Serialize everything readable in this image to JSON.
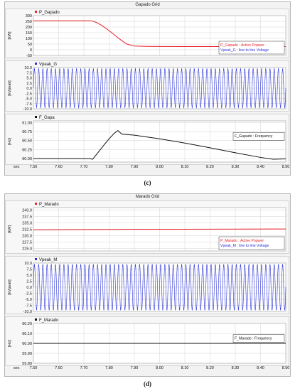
{
  "colors": {
    "power": "#e8202a",
    "voltage": "#2a33d8",
    "frequency": "#111111",
    "panel_bg": "#ffffff",
    "grid": "#c8c8c8"
  },
  "figures": [
    {
      "title": "Gapado Grid",
      "caption": "(c)",
      "x_axis_label": "sec",
      "x_ticks": [
        "7.50",
        "7.60",
        "7.70",
        "7.80",
        "7.90",
        "8.00",
        "8.10",
        "8.20",
        "8.30",
        "8.40",
        "8.50"
      ],
      "panels": [
        {
          "legend": "P_Gapado",
          "unit": "[kW]",
          "y_ticks": [
            "300",
            "250",
            "200",
            "150",
            "100",
            "50",
            "0",
            "-50"
          ],
          "series_color": "power",
          "annotation": [
            {
              "text": "P_Gapado : Active Popwer",
              "color": "power"
            },
            {
              "text": "Vpeak_G : line to line Voltage",
              "color": "voltage"
            }
          ]
        },
        {
          "legend": "Vpeak_G",
          "unit": "[kVpeak]",
          "y_ticks": [
            "10.0",
            "7.5",
            "5.0",
            "2.5",
            "0.0",
            "-2.5",
            "-5.0",
            "-7.5",
            "-10.0"
          ],
          "series_color": "voltage",
          "annotation": []
        },
        {
          "legend": "F_Gapa",
          "unit": "[Hz]",
          "y_ticks": [
            "61.00",
            "60.75",
            "60.50",
            "60.25",
            "60.00"
          ],
          "series_color": "frequency",
          "annotation": [
            {
              "text": "F_Gapado : Frequency",
              "color": "frequency"
            }
          ]
        }
      ]
    },
    {
      "title": "Marado Grid",
      "caption": "(d)",
      "x_axis_label": "sec",
      "x_ticks": [
        "7.50",
        "7.60",
        "7.70",
        "7.80",
        "7.90",
        "8.00",
        "8.10",
        "8.20",
        "8.30",
        "8.40",
        "8.50"
      ],
      "panels": [
        {
          "legend": "P_Marado",
          "unit": "[kW]",
          "y_ticks": [
            "240.0",
            "237.5",
            "235.0",
            "232.5",
            "230.0",
            "227.5",
            "225.0"
          ],
          "series_color": "power",
          "annotation": [
            {
              "text": "P_Marado : Active Popwer",
              "color": "power"
            },
            {
              "text": "Vpeak_M : line to line Voltage",
              "color": "voltage"
            }
          ]
        },
        {
          "legend": "Vpeak_M",
          "unit": "[kVpeak]",
          "y_ticks": [
            "10.0",
            "7.5",
            "5.0",
            "2.5",
            "0.0",
            "-2.5",
            "-5.0",
            "-7.5",
            "-10.0"
          ],
          "series_color": "voltage",
          "annotation": []
        },
        {
          "legend": "F_Marado",
          "unit": "[Hz]",
          "y_ticks": [
            "60.20",
            "60.10",
            "60.00",
            "59.90",
            "59.80"
          ],
          "series_color": "frequency",
          "annotation": [
            {
              "text": "F_Marado : Frequency",
              "color": "frequency"
            }
          ]
        }
      ]
    }
  ],
  "chart_data": [
    {
      "type": "line",
      "title": "Gapado Grid",
      "xlabel": "sec",
      "xlim": [
        7.5,
        8.5
      ],
      "subplots": [
        {
          "name": "P_Gapado",
          "ylabel": "[kW]",
          "ylim": [
            -50,
            300
          ],
          "series": [
            {
              "name": "P_Gapado",
              "x": [
                7.5,
                7.6,
                7.7,
                7.73,
                7.75,
                7.77,
                7.79,
                7.81,
                7.83,
                7.85,
                7.87,
                7.9,
                7.95,
                8.0,
                8.1,
                8.2,
                8.3,
                8.4,
                8.5
              ],
              "y": [
                255,
                255,
                255,
                255,
                240,
                215,
                185,
                150,
                115,
                80,
                50,
                33,
                30,
                29,
                28,
                28,
                28,
                28,
                28
              ]
            }
          ]
        },
        {
          "name": "Vpeak_G",
          "ylabel": "[kVpeak]",
          "ylim": [
            -10,
            10
          ],
          "series": [
            {
              "name": "Vpeak_G",
              "waveform": "sine",
              "amplitude": 9.5,
              "frequency_hz": 60,
              "x_range": [
                7.5,
                8.5
              ]
            }
          ]
        },
        {
          "name": "F_Gapa",
          "ylabel": "[Hz]",
          "ylim": [
            59.9,
            61.05
          ],
          "series": [
            {
              "name": "F_Gapa",
              "x": [
                7.5,
                7.6,
                7.7,
                7.72,
                7.735,
                7.745,
                7.76,
                7.78,
                7.8,
                7.82,
                7.835,
                7.85,
                7.9,
                8.0,
                8.1,
                8.2,
                8.3,
                8.4,
                8.45,
                8.5
              ],
              "y": [
                60.0,
                60.0,
                60.0,
                60.0,
                59.98,
                60.07,
                60.2,
                60.38,
                60.55,
                60.7,
                60.78,
                60.68,
                60.65,
                60.55,
                60.43,
                60.3,
                60.16,
                60.03,
                59.98,
                59.99
              ]
            }
          ]
        }
      ]
    },
    {
      "type": "line",
      "title": "Marado Grid",
      "xlabel": "sec",
      "xlim": [
        7.5,
        8.5
      ],
      "subplots": [
        {
          "name": "P_Marado",
          "ylabel": "[kW]",
          "ylim": [
            224,
            241
          ],
          "series": [
            {
              "name": "P_Marado",
              "x": [
                7.5,
                8.0,
                8.5
              ],
              "y": [
                232.3,
                232.5,
                232.6
              ]
            }
          ]
        },
        {
          "name": "Vpeak_M",
          "ylabel": "[kVpeak]",
          "ylim": [
            -10,
            10
          ],
          "series": [
            {
              "name": "Vpeak_M",
              "waveform": "sine",
              "amplitude": 9.5,
              "frequency_hz": 60,
              "x_range": [
                7.5,
                8.5
              ]
            }
          ]
        },
        {
          "name": "F_Marado",
          "ylabel": "[Hz]",
          "ylim": [
            59.8,
            60.2
          ],
          "series": [
            {
              "name": "F_Marado",
              "x": [
                7.5,
                8.0,
                8.5
              ],
              "y": [
                60.0,
                60.0,
                60.0
              ]
            }
          ]
        }
      ]
    }
  ]
}
